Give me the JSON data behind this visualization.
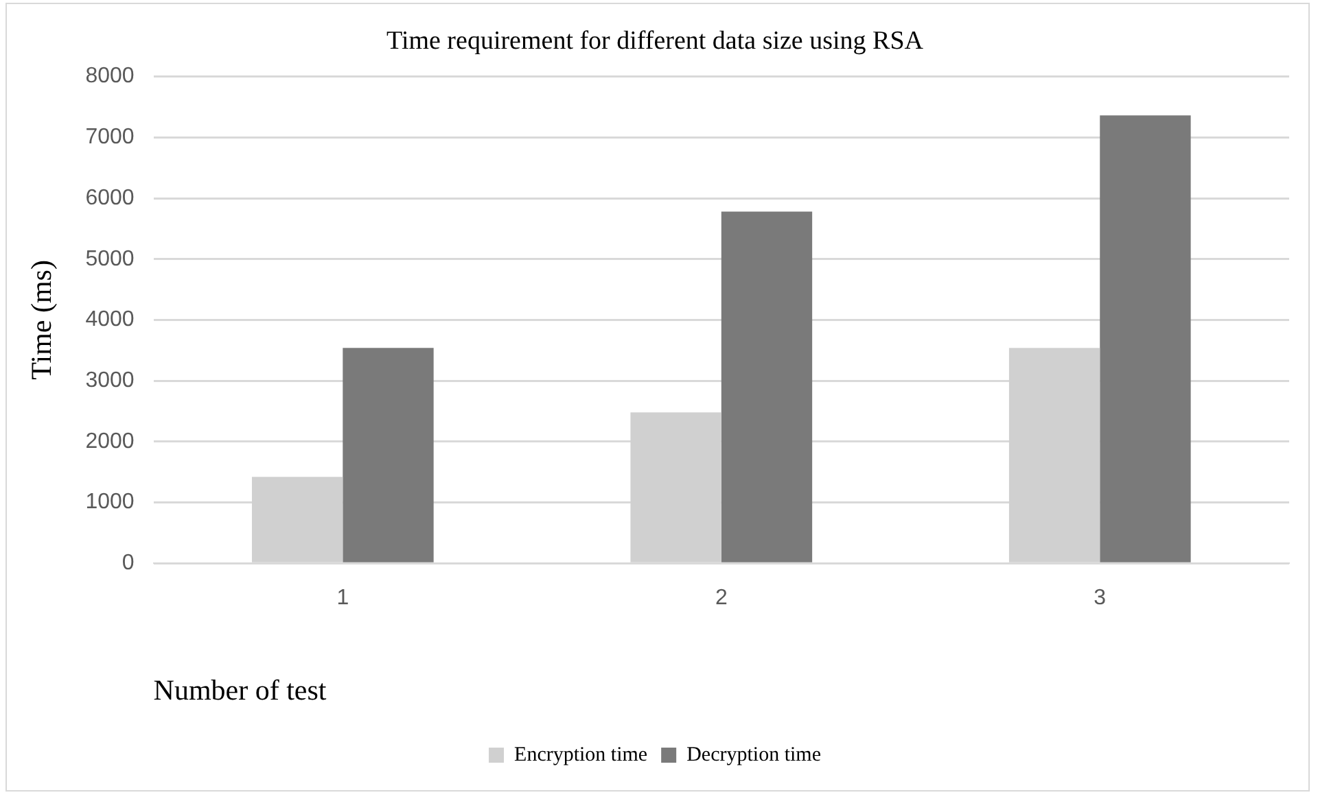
{
  "chart_data": {
    "type": "bar",
    "title": "Time requirement for different data size using RSA",
    "xlabel": "Number of test",
    "ylabel": "Time (ms)",
    "categories": [
      "1",
      "2",
      "3"
    ],
    "series": [
      {
        "name": "Encryption time",
        "color": "#d0d0d0",
        "values": [
          1420,
          2480,
          3540
        ]
      },
      {
        "name": "Decryption time",
        "color": "#7a7a7a",
        "values": [
          3540,
          5780,
          7360
        ]
      }
    ],
    "ylim": [
      0,
      8000
    ],
    "yticks": [
      0,
      1000,
      2000,
      3000,
      4000,
      5000,
      6000,
      7000,
      8000
    ],
    "grid": "y",
    "legend": "bottom"
  }
}
